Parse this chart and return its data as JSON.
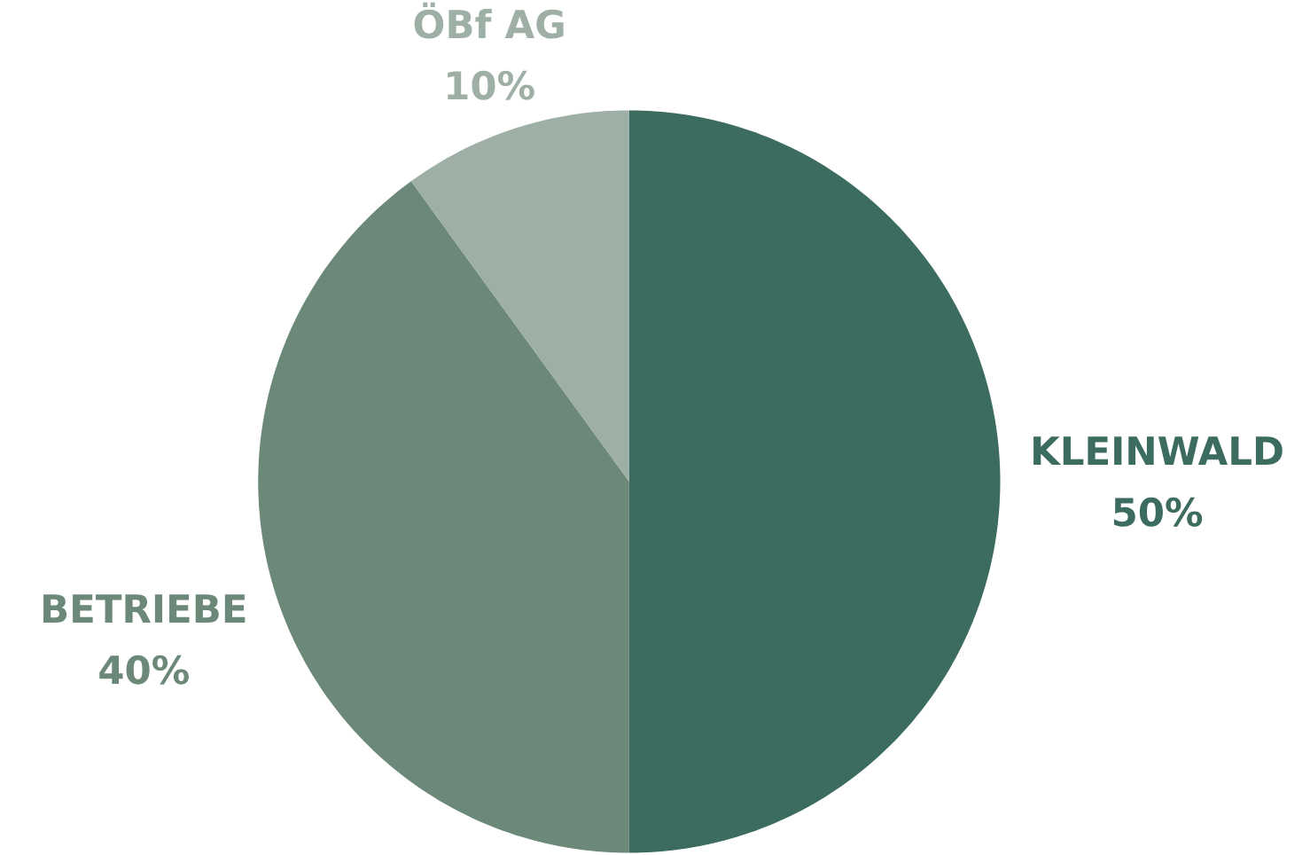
{
  "chart_data": {
    "type": "pie",
    "categories": [
      "KLEINWALD",
      "BETRIEBE",
      "ÖBf AG"
    ],
    "values": [
      50,
      40,
      10
    ],
    "value_labels": [
      "50%",
      "40%",
      "10%"
    ],
    "colors": [
      "#3c6b5f",
      "#6b8878",
      "#9eb0a5"
    ]
  }
}
